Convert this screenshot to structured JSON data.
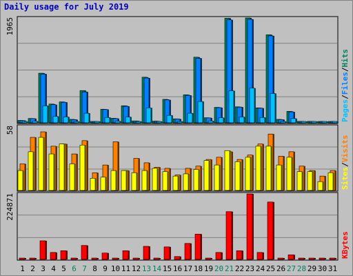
{
  "chart_data": {
    "type": "bar",
    "title": "Daily usage for July 2019",
    "days": [
      "1",
      "2",
      "3",
      "4",
      "5",
      "6",
      "7",
      "8",
      "9",
      "10",
      "11",
      "12",
      "13",
      "14",
      "15",
      "16",
      "17",
      "18",
      "19",
      "20",
      "21",
      "22",
      "23",
      "24",
      "25",
      "26",
      "27",
      "28",
      "29",
      "30",
      "31"
    ],
    "weekend_days": [
      "6",
      "7",
      "13",
      "14",
      "20",
      "21",
      "27",
      "28"
    ],
    "colors": {
      "title": "#0000c0",
      "pages": "#00c0ff",
      "files": "#0080ff",
      "hits": "#00805f",
      "visits": "#ff8000",
      "sites": "#ffff00",
      "kbytes": "#ff0000",
      "weekend_label": "#00805f"
    },
    "panels": [
      {
        "name": "hits-files-pages",
        "ymax_label": "1965",
        "ymax": 1965,
        "legend": [
          "Pages",
          "/",
          "Files",
          "/",
          "Hits"
        ],
        "series": [
          {
            "name": "Hits",
            "values": [
              45,
              82,
              930,
              352,
              392,
              65,
              605,
              26,
              255,
              85,
              320,
              36,
              855,
              32,
              440,
              75,
              525,
              1230,
              95,
              290,
              1960,
              300,
              1965,
              280,
              1650,
              65,
              215,
              28,
              28,
              24,
              26
            ]
          },
          {
            "name": "Files",
            "values": [
              42,
              80,
              915,
              340,
              385,
              60,
              580,
              24,
              250,
              80,
              310,
              34,
              840,
              30,
              430,
              72,
              515,
              1210,
              92,
              285,
              1930,
              295,
              1940,
              275,
              1630,
              60,
              205,
              27,
              27,
              23,
              25
            ]
          },
          {
            "name": "Pages",
            "values": [
              20,
              30,
              320,
              120,
              110,
              25,
              180,
              10,
              100,
              30,
              110,
              12,
              280,
              10,
              140,
              25,
              180,
              400,
              35,
              95,
              600,
              110,
              650,
              100,
              550,
              25,
              80,
              8,
              8,
              8,
              8
            ]
          }
        ]
      },
      {
        "name": "visits-sites",
        "ymax_label": "58",
        "ymax": 58,
        "legend": [
          "Sites",
          "/",
          "Visits"
        ],
        "series": [
          {
            "name": "Visits",
            "values": [
              24,
              48,
              53,
              40,
              42,
              33,
              45,
              16,
              23,
              44,
              18,
              29,
              25,
              21,
              20,
              14,
              20,
              22,
              28,
              30,
              35,
              28,
              32,
              42,
              51,
              31,
              35,
              22,
              18,
              13,
              18
            ]
          },
          {
            "name": "Sites",
            "values": [
              18,
              35,
              48,
              33,
              42,
              24,
              41,
              11,
              12,
              18,
              18,
              16,
              18,
              20,
              17,
              13,
              15,
              19,
              27,
              23,
              36,
              26,
              30,
              40,
              40,
              23,
              30,
              17,
              17,
              8,
              16
            ]
          }
        ]
      },
      {
        "name": "kbytes",
        "ymax_label": "224871",
        "ymax": 224871,
        "legend": [
          "KBytes"
        ],
        "series": [
          {
            "name": "KBytes",
            "values": [
              4000,
              4000,
              64000,
              24000,
              30000,
              4000,
              48000,
              4000,
              22000,
              4000,
              30000,
              4000,
              45000,
              4000,
              43000,
              10000,
              55000,
              87000,
              4000,
              24000,
              164000,
              30000,
              224871,
              24000,
              197000,
              4000,
              16000,
              4000,
              4000,
              4000,
              4000
            ]
          }
        ]
      }
    ]
  }
}
